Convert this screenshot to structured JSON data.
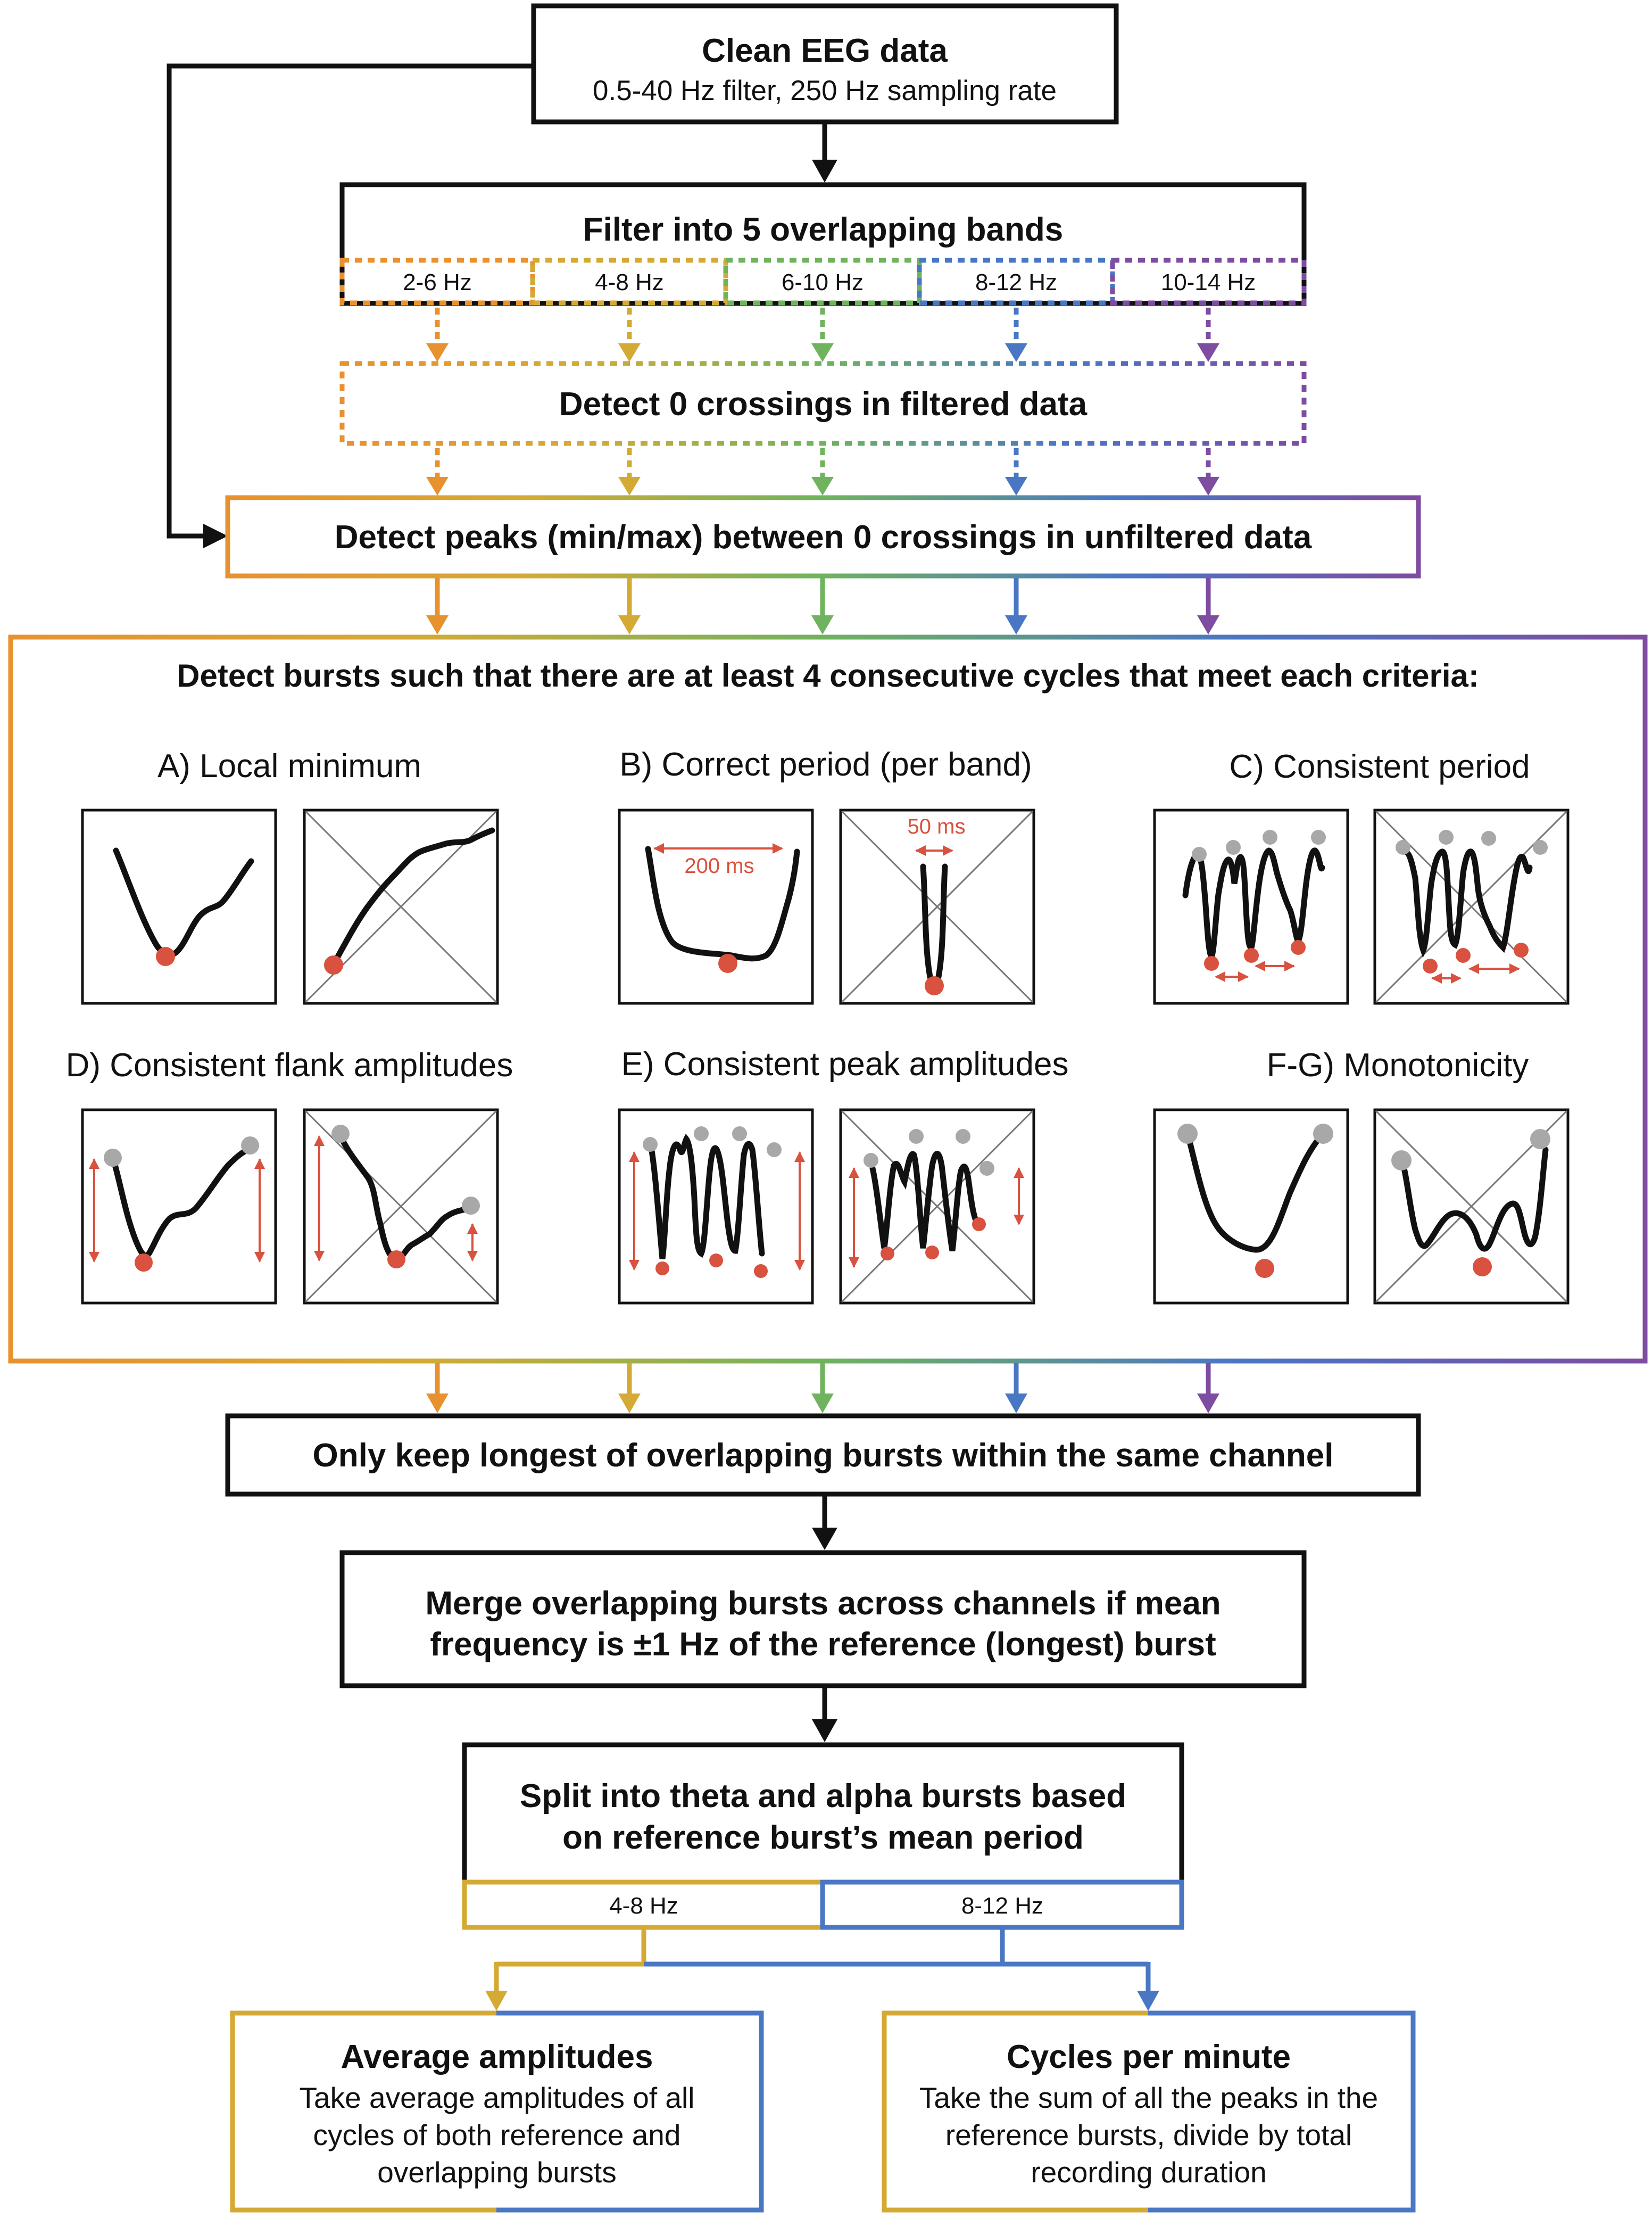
{
  "clean": {
    "title": "Clean EEG data",
    "subtitle": "0.5-40 Hz filter, 250 Hz sampling rate"
  },
  "filter": {
    "title": "Filter into 5 overlapping bands",
    "bands": [
      "2-6 Hz",
      "4-8 Hz",
      "6-10 Hz",
      "8-12 Hz",
      "10-14 Hz"
    ]
  },
  "zero_crossings": "Detect 0 crossings in filtered data",
  "peaks": "Detect peaks (min/max) between 0 crossings in unfiltered data",
  "bursts": {
    "title": "Detect bursts such that there are at least 4 consecutive cycles that meet each criteria:",
    "criteria": [
      {
        "label": "A) Local minimum"
      },
      {
        "label": "B) Correct period (per band)",
        "good_annotation": "200 ms",
        "bad_annotation": "50 ms"
      },
      {
        "label": "C) Consistent period"
      },
      {
        "label": "D) Consistent flank amplitudes"
      },
      {
        "label": "E) Consistent peak amplitudes"
      },
      {
        "label": "F-G) Monotonicity"
      }
    ]
  },
  "keep_longest": "Only keep longest of overlapping bursts within the same channel",
  "merge": {
    "line1": "Merge overlapping bursts across channels if mean",
    "line2": "frequency is ±1 Hz of the reference (longest) burst"
  },
  "split": {
    "line1": "Split into theta and alpha bursts based",
    "line2": "on reference burst’s mean period",
    "theta_label": "4-8 Hz",
    "alpha_label": "8-12 Hz"
  },
  "outputs": [
    {
      "title": "Average amplitudes",
      "lines": [
        "Take average amplitudes of all",
        "cycles of both reference and",
        "overlapping bursts"
      ]
    },
    {
      "title": "Cycles per minute",
      "lines": [
        "Take the sum of all the peaks in the",
        "reference bursts, divide by total",
        "recording duration"
      ]
    }
  ],
  "colors": {
    "band_2_6": "#E8912F",
    "band_4_8": "#D4AA35",
    "band_6_10": "#6FB35E",
    "band_8_12": "#4977C4",
    "band_10_14": "#7E4CA0",
    "marker_red": "#D9513F",
    "marker_gray": "#A8A8A8",
    "line_black": "#111111"
  }
}
